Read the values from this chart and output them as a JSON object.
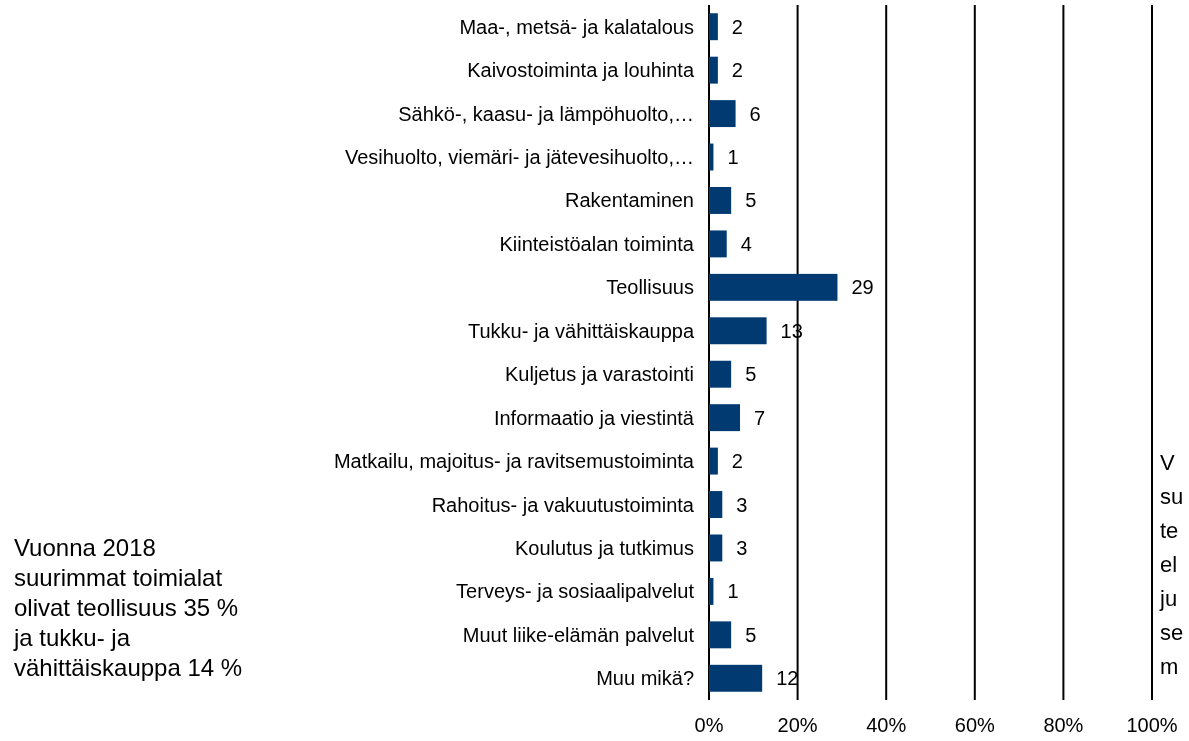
{
  "chart_data": {
    "type": "bar",
    "orientation": "horizontal",
    "categories": [
      "Maa-, metsä- ja kalatalous",
      "Kaivostoiminta ja louhinta",
      "Sähkö-, kaasu- ja lämpöhuolto,…",
      "Vesihuolto, viemäri- ja jätevesihuolto,…",
      "Rakentaminen",
      "Kiinteistöalan toiminta",
      "Teollisuus",
      "Tukku- ja vähittäiskauppa",
      "Kuljetus ja varastointi",
      "Informaatio ja viestintä",
      "Matkailu, majoitus- ja ravitsemustoiminta",
      "Rahoitus- ja vakuutustoiminta",
      "Koulutus ja tutkimus",
      "Terveys- ja sosiaalipalvelut",
      "Muut liike-elämän palvelut",
      "Muu mikä?"
    ],
    "values": [
      2,
      2,
      6,
      1,
      5,
      4,
      29,
      13,
      5,
      7,
      2,
      3,
      3,
      1,
      5,
      12
    ],
    "color": "#003a70",
    "data_labels": true,
    "xlim": [
      0,
      100
    ],
    "xticks": [
      {
        "value": 0,
        "label": "0%"
      },
      {
        "value": 20,
        "label": "20%"
      },
      {
        "value": 40,
        "label": "40%"
      },
      {
        "value": 60,
        "label": "60%"
      },
      {
        "value": 80,
        "label": "80%"
      },
      {
        "value": 100,
        "label": "100%"
      }
    ],
    "grid": "x",
    "annotations": [
      "Vuonna 2018\nsuurimmat toimialat\nolivat teollisuus 35 %\nja  tukku- ja\nvähittäiskauppa 14 %",
      "V\nsu\nte\nel\nju\nse\nm"
    ]
  }
}
